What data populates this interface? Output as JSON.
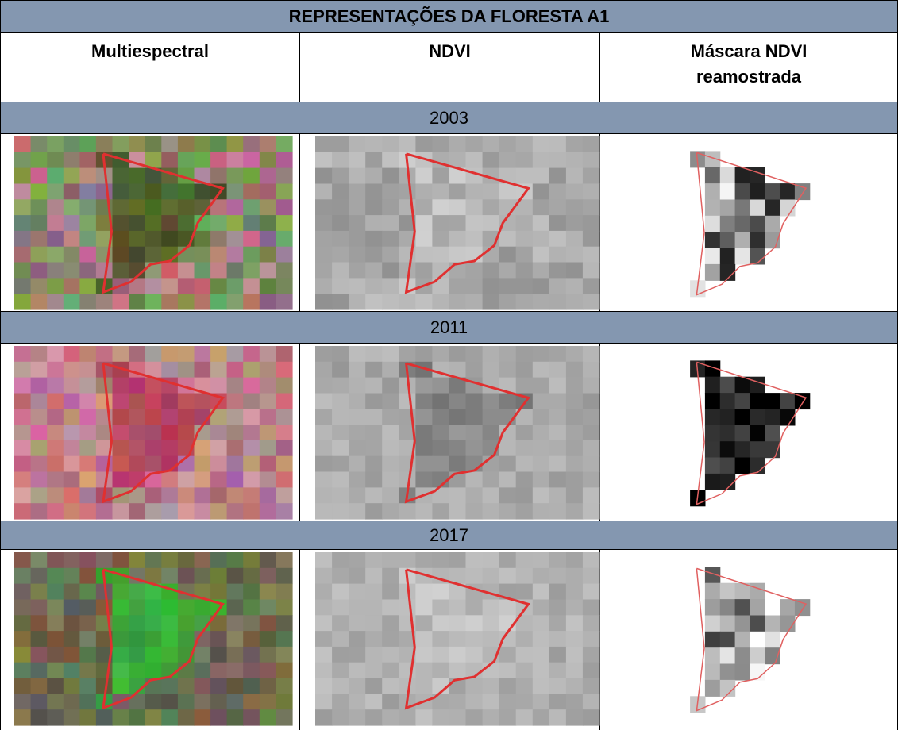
{
  "title": "REPRESENTAÇÕES DA FLORESTA A1",
  "columns": [
    "Multiespectral",
    "NDVI",
    "Máscara NDVI reamostrada"
  ],
  "sections": [
    {
      "year": "2003"
    },
    {
      "year": "2011"
    },
    {
      "year": "2017"
    }
  ]
}
